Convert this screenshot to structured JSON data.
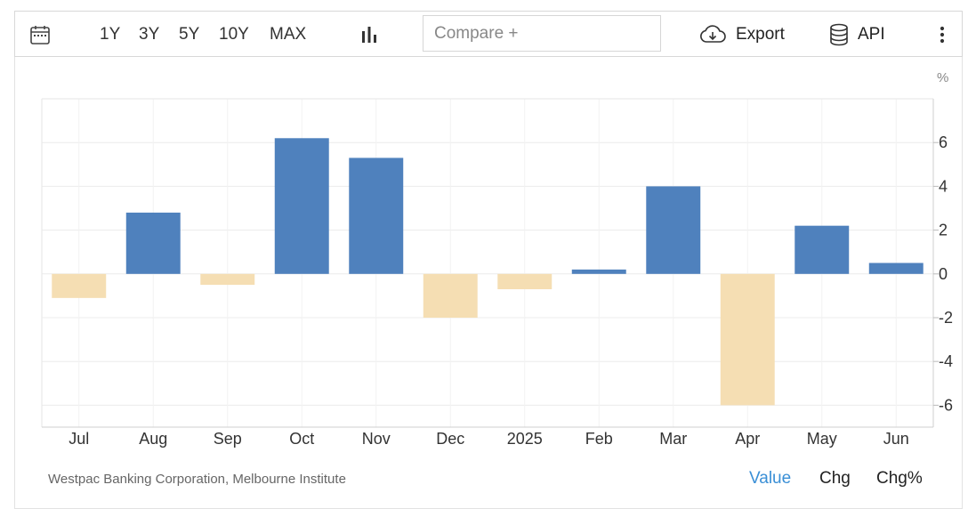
{
  "toolbar": {
    "ranges": [
      "1Y",
      "3Y",
      "5Y",
      "10Y",
      "MAX"
    ],
    "compare_placeholder": "Compare +",
    "export_label": "Export",
    "api_label": "API",
    "icons": [
      "calendar-icon",
      "bar-chart-icon",
      "cloud-download-icon",
      "database-icon",
      "more-vertical-icon"
    ]
  },
  "chart_data": {
    "type": "bar",
    "categories": [
      "Jul",
      "Aug",
      "Sep",
      "Oct",
      "Nov",
      "Dec",
      "2025",
      "Feb",
      "Mar",
      "Apr",
      "May",
      "Jun"
    ],
    "values": [
      -1.1,
      2.8,
      -0.5,
      6.2,
      5.3,
      -2.0,
      -0.7,
      0.2,
      4.0,
      -6.0,
      2.2,
      0.5
    ],
    "unit_label": "%",
    "ylim": [
      -7,
      8
    ],
    "yticks": [
      -6,
      -4,
      -2,
      0,
      2,
      4,
      6
    ],
    "grid": true,
    "colors": {
      "positive": "#4f81bd",
      "negative": "#f5deb3"
    }
  },
  "footer": {
    "source": "Westpac Banking Corporation, Melbourne Institute",
    "tabs": [
      {
        "label": "Value",
        "color": "#3a8fd6"
      },
      {
        "label": "Chg",
        "color": "#222222"
      },
      {
        "label": "Chg%",
        "color": "#222222"
      }
    ]
  }
}
